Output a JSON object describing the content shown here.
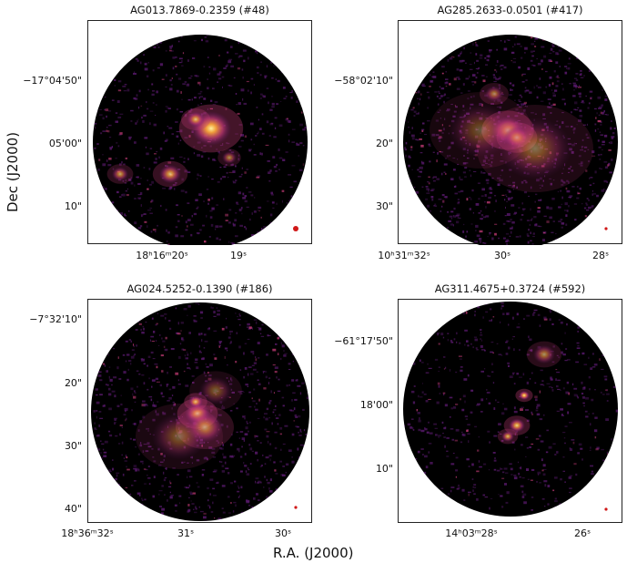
{
  "axes": {
    "ylabel": "Dec (J2000)",
    "xlabel": "R.A. (J2000)"
  },
  "panels": [
    {
      "title": "AG013.7869-0.2359 (#48)",
      "yticks": [
        "−17°04'50\"",
        "05'00\"",
        "10\""
      ],
      "xticks": [
        "18ʰ16ᵐ20ˢ",
        "19ˢ"
      ]
    },
    {
      "title": "AG285.2633-0.0501 (#417)",
      "yticks": [
        "−58°02'10\"",
        "20\"",
        "30\""
      ],
      "xticks": [
        "10ʰ31ᵐ32ˢ",
        "30ˢ",
        "28ˢ"
      ]
    },
    {
      "title": "AG024.5252-0.1390 (#186)",
      "yticks": [
        "−7°32'10\"",
        "20\"",
        "30\"",
        "40\""
      ],
      "xticks": [
        "18ʰ36ᵐ32ˢ",
        "31ˢ",
        "30ˢ"
      ]
    },
    {
      "title": "AG311.4675+0.3724 (#592)",
      "yticks": [
        "−61°17'50\"",
        "18'00\"",
        "10\""
      ],
      "xticks": [
        "14ʰ03ᵐ28ˢ",
        "26ˢ"
      ]
    }
  ],
  "colors": {
    "background": "#000000",
    "emission_low": "#5a1a6e",
    "emission_mid": "#c23b75",
    "emission_high": "#f8a23a",
    "emission_peak": "#fdf2a0",
    "beam": "#d01818"
  }
}
